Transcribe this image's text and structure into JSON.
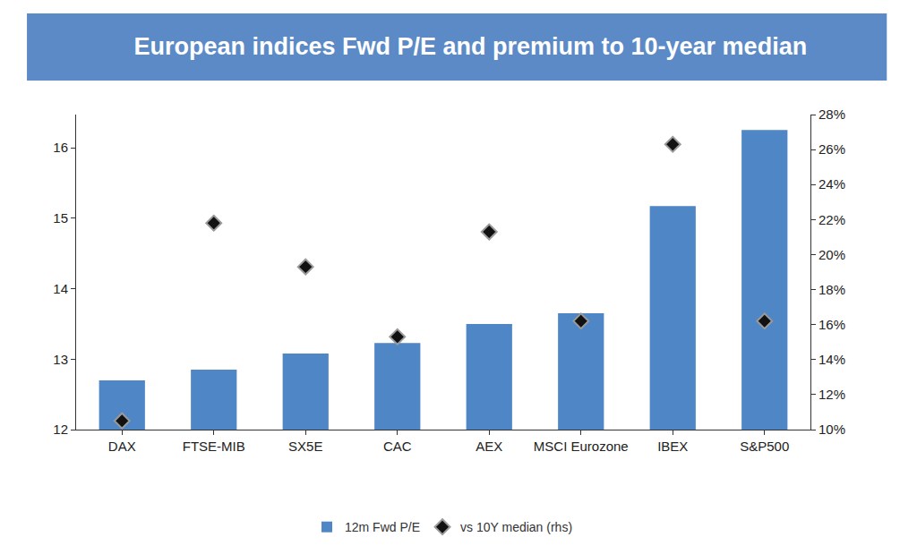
{
  "chart_data": {
    "type": "bar",
    "title": "European indices Fwd P/E and premium to 10-year median",
    "categories": [
      "DAX",
      "FTSE-MIB",
      "SX5E",
      "CAC",
      "AEX",
      "MSCI Eurozone",
      "IBEX",
      "S&P500"
    ],
    "series": [
      {
        "name": "12m Fwd P/E",
        "type": "bar",
        "color": "#4f86c6",
        "values": [
          12.7,
          12.85,
          13.08,
          13.23,
          13.5,
          13.65,
          15.17,
          16.25
        ]
      },
      {
        "name": "vs 10Y median (rhs)",
        "type": "scatter",
        "axis": "y2",
        "marker": "diamond",
        "color": "#111111",
        "values": [
          10.5,
          21.8,
          19.3,
          15.3,
          21.3,
          16.2,
          26.3,
          16.2
        ]
      }
    ],
    "ylim": [
      12,
      16.47
    ],
    "yticks": [
      12,
      13,
      14,
      15,
      16
    ],
    "y2lim": [
      10,
      28
    ],
    "y2ticks": [
      {
        "value": 10,
        "label": "10%"
      },
      {
        "value": 12,
        "label": "12%"
      },
      {
        "value": 14,
        "label": "14%"
      },
      {
        "value": 16,
        "label": "16%"
      },
      {
        "value": 18,
        "label": "18%"
      },
      {
        "value": 20,
        "label": "20%"
      },
      {
        "value": 22,
        "label": "22%"
      },
      {
        "value": 24,
        "label": "24%"
      },
      {
        "value": 26,
        "label": "26%"
      },
      {
        "value": 28,
        "label": "28%"
      }
    ],
    "grid": false,
    "legend": "bottom"
  }
}
